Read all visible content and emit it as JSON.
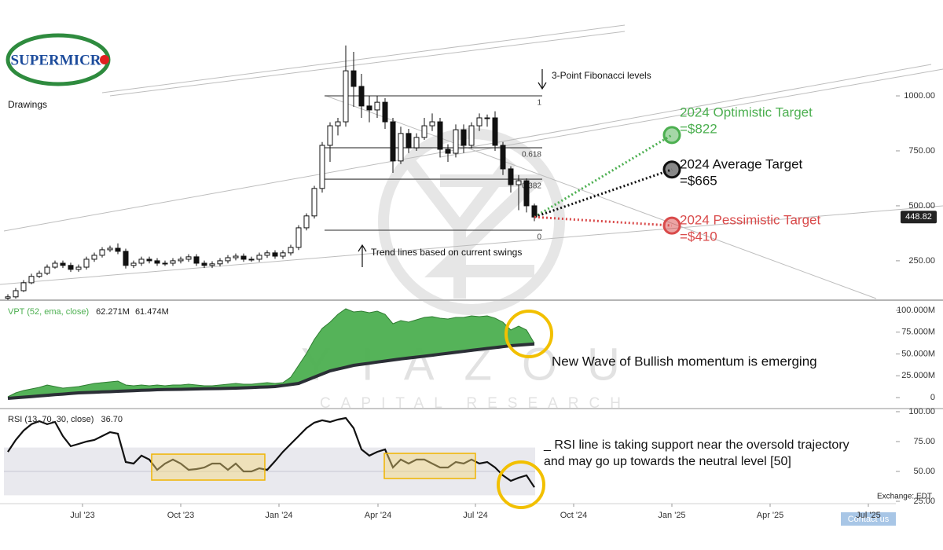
{
  "logo": "SUPERMICR",
  "watermark": {
    "name": "YIAZOU",
    "tagline": "CAPITAL RESEARCH"
  },
  "exchange": "Exchange: EDT",
  "contact": "Contact us",
  "chart_data": [
    {
      "type": "candlestick",
      "x": [
        0,
        1,
        2,
        3,
        4,
        5,
        6,
        7,
        8,
        9,
        10,
        11,
        12,
        13,
        14,
        15,
        16,
        17,
        18,
        19,
        20,
        21,
        22,
        23,
        24,
        25,
        26,
        27,
        28,
        29,
        30,
        31,
        32,
        33,
        34,
        35,
        36,
        37,
        38,
        39,
        40,
        41,
        42,
        43,
        44,
        45,
        46,
        47,
        48,
        49,
        50,
        51,
        52,
        53,
        54,
        55,
        56,
        57,
        58,
        59,
        60,
        61,
        62,
        63,
        64,
        65,
        66,
        67
      ],
      "open": [
        80,
        86,
        114,
        150,
        179,
        193,
        221,
        239,
        229,
        211,
        221,
        257,
        275,
        300,
        307,
        293,
        229,
        239,
        257,
        250,
        239,
        239,
        250,
        257,
        268,
        239,
        229,
        236,
        250,
        264,
        271,
        257,
        257,
        275,
        286,
        271,
        286,
        311,
        400,
        454,
        579,
        775,
        864,
        882,
        1114,
        1043,
        954,
        936,
        971,
        882,
        704,
        829,
        764,
        811,
        864,
        882,
        757,
        739,
        846,
        775,
        864,
        900,
        900,
        775,
        668,
        596,
        614,
        500
      ],
      "high": [
        98,
        126,
        162,
        191,
        205,
        233,
        251,
        251,
        241,
        233,
        269,
        287,
        312,
        319,
        329,
        305,
        251,
        269,
        269,
        262,
        251,
        262,
        269,
        280,
        280,
        251,
        248,
        262,
        276,
        283,
        283,
        269,
        287,
        298,
        298,
        298,
        323,
        412,
        466,
        591,
        790,
        880,
        900,
        1229,
        1200,
        1100,
        1000,
        1000,
        990,
        900,
        860,
        850,
        830,
        900,
        920,
        900,
        780,
        870,
        870,
        880,
        920,
        915,
        930,
        790,
        680,
        640,
        625,
        510
      ],
      "low": [
        72,
        78,
        108,
        144,
        172,
        185,
        214,
        217,
        199,
        200,
        210,
        245,
        265,
        290,
        280,
        215,
        217,
        227,
        238,
        227,
        227,
        227,
        238,
        245,
        227,
        217,
        217,
        224,
        238,
        252,
        245,
        245,
        245,
        263,
        259,
        259,
        274,
        299,
        388,
        442,
        560,
        700,
        820,
        860,
        950,
        900,
        880,
        900,
        850,
        650,
        690,
        740,
        750,
        800,
        840,
        720,
        700,
        720,
        740,
        760,
        840,
        860,
        750,
        640,
        560,
        480,
        470,
        430
      ],
      "close": [
        86,
        114,
        150,
        179,
        193,
        221,
        239,
        229,
        211,
        221,
        257,
        275,
        300,
        307,
        293,
        229,
        239,
        257,
        250,
        239,
        239,
        250,
        257,
        268,
        239,
        229,
        236,
        250,
        264,
        271,
        257,
        257,
        275,
        286,
        271,
        286,
        311,
        400,
        454,
        579,
        775,
        864,
        882,
        1114,
        1043,
        954,
        936,
        971,
        882,
        704,
        829,
        764,
        811,
        864,
        882,
        757,
        739,
        846,
        775,
        864,
        900,
        900,
        775,
        668,
        596,
        614,
        500,
        449
      ],
      "up_color": "#ffffff",
      "down_color": "#111111",
      "xlim": [
        -1,
        113
      ],
      "ylim": [
        71,
        1436
      ],
      "yticks": [
        {
          "value": 1000,
          "label": "1000.00"
        },
        {
          "value": 750,
          "label": "750.00"
        },
        {
          "value": 500,
          "label": "500.00"
        },
        {
          "value": 250,
          "label": "250.00"
        }
      ],
      "last_price": 448.82,
      "fib_levels": [
        {
          "value": 1000,
          "label": "1"
        },
        {
          "value": 764,
          "label": "0.618"
        },
        {
          "value": 621,
          "label": "0.382"
        },
        {
          "value": 389,
          "label": "0"
        }
      ],
      "targets": {
        "labels": [
          "2024 Optimistic Target",
          "2024 Average Target",
          "2024 Pessimistic Target"
        ],
        "value_labels": [
          "=$822",
          "=$665",
          "=$410"
        ],
        "values": [
          822,
          665,
          410
        ],
        "x": 84.5,
        "colors": [
          "#4caf50",
          "#111111",
          "#d94a4a"
        ]
      },
      "annotations": [
        "Drawings",
        "3-Point Fibonacci levels",
        "Trend lines based on current swings"
      ]
    },
    {
      "type": "area",
      "title": "VPT (52, ema, close)",
      "readout": [
        "62.271M",
        "61.474M"
      ],
      "x": [
        0,
        1,
        2,
        3,
        4,
        5,
        6,
        7,
        8,
        9,
        10,
        11,
        12,
        13,
        14,
        15,
        16,
        17,
        18,
        19,
        20,
        21,
        22,
        23,
        24,
        25,
        26,
        27,
        28,
        29,
        30,
        31,
        32,
        33,
        34,
        35,
        36,
        37,
        38,
        39,
        40,
        41,
        42,
        43,
        44,
        45,
        46,
        47,
        48,
        49,
        50,
        51,
        52,
        53,
        54,
        55,
        56,
        57,
        58,
        59,
        60,
        61,
        62,
        63,
        64,
        65,
        66,
        67
      ],
      "series": [
        {
          "name": "VPT",
          "color": "#4caf50",
          "values": [
            0.9,
            5.4,
            8.1,
            9.9,
            11.7,
            14.4,
            12.6,
            10.8,
            11.7,
            12.6,
            14.4,
            16.2,
            17.1,
            18.0,
            18.9,
            14.4,
            13.5,
            14.4,
            13.5,
            14.4,
            13.5,
            14.4,
            14.4,
            15.3,
            14.4,
            13.5,
            13.5,
            14.4,
            15.3,
            16.2,
            15.3,
            15.3,
            16.2,
            17.1,
            16.2,
            17.1,
            23.4,
            36.9,
            50.5,
            66.7,
            79.3,
            86.5,
            95.5,
            101.8,
            98.2,
            99.1,
            97.3,
            99.1,
            95.5,
            84.7,
            88.3,
            86.5,
            89.2,
            91.9,
            92.8,
            91.0,
            90.1,
            91.9,
            91.9,
            93.7,
            92.8,
            93.7,
            91.0,
            86.5,
            77.5,
            82.0,
            77.5,
            62.271
          ]
        },
        {
          "name": "Signal",
          "color": "#2b2f36",
          "values": [
            -0.9,
            -0.2,
            0.5,
            1.2,
            1.9,
            2.6,
            3.3,
            4.0,
            4.7,
            5.4,
            5.8,
            6.1,
            6.5,
            6.8,
            7.2,
            7.6,
            7.9,
            8.3,
            8.6,
            9.0,
            9.2,
            9.4,
            9.5,
            9.7,
            9.9,
            10.1,
            10.3,
            10.4,
            10.6,
            10.8,
            11.2,
            11.5,
            11.9,
            12.2,
            12.6,
            13.8,
            15.0,
            16.2,
            19.8,
            23.4,
            27.0,
            30.6,
            32.7,
            34.8,
            36.9,
            38.2,
            39.4,
            40.7,
            41.9,
            43.2,
            44.3,
            45.4,
            46.4,
            47.5,
            48.6,
            49.7,
            50.8,
            51.9,
            53.0,
            54.1,
            55.2,
            56.3,
            57.3,
            58.4,
            59.5,
            60.2,
            60.8,
            61.474
          ]
        }
      ],
      "xlim": [
        -1,
        113
      ],
      "ylim": [
        -12.6,
        110.8
      ],
      "yticks": [
        {
          "value": 100,
          "label": "100.000M"
        },
        {
          "value": 75,
          "label": "75.000M"
        },
        {
          "value": 50,
          "label": "50.000M"
        },
        {
          "value": 25,
          "label": "25.000M"
        },
        0
      ],
      "annotations": [
        "New Wave of Bullish momentum is emerging"
      ]
    },
    {
      "type": "line",
      "title": "RSI (13, 70, 30, close)",
      "readout": [
        "36.70"
      ],
      "x": [
        0,
        1,
        2,
        3,
        4,
        5,
        6,
        7,
        8,
        9,
        10,
        11,
        12,
        13,
        14,
        15,
        16,
        17,
        18,
        19,
        20,
        21,
        22,
        23,
        24,
        25,
        26,
        27,
        28,
        29,
        30,
        31,
        32,
        33,
        34,
        35,
        36,
        37,
        38,
        39,
        40,
        41,
        42,
        43,
        44,
        45,
        46,
        47,
        48,
        49,
        50,
        51,
        52,
        53,
        54,
        55,
        56,
        57,
        58,
        59,
        60,
        61,
        62,
        63,
        64,
        65,
        66,
        67
      ],
      "series": [
        {
          "name": "RSI",
          "color": "#111111",
          "values": [
            66.4,
            76.3,
            84.2,
            89.5,
            92.1,
            89.5,
            91.4,
            79.6,
            71.1,
            73.0,
            75.0,
            76.3,
            79.6,
            82.9,
            81.6,
            57.9,
            56.6,
            63.2,
            59.9,
            51.3,
            56.6,
            59.9,
            56.6,
            51.3,
            52.0,
            53.3,
            56.6,
            56.6,
            51.3,
            56.6,
            50.0,
            50.0,
            52.6,
            51.3,
            58.6,
            66.4,
            73.0,
            79.6,
            86.2,
            90.8,
            92.8,
            91.4,
            93.4,
            94.7,
            86.2,
            68.4,
            63.2,
            66.4,
            68.4,
            53.3,
            59.9,
            56.6,
            59.9,
            59.9,
            56.6,
            53.3,
            53.3,
            57.9,
            56.6,
            59.9,
            56.6,
            57.9,
            53.3,
            46.7,
            42.1,
            44.7,
            46.7,
            36.7
          ]
        }
      ],
      "band": [
        30,
        70
      ],
      "midline": 50,
      "xlim": [
        -1,
        113
      ],
      "ylim": [
        23.7,
        102.6
      ],
      "yticks": [
        {
          "value": 100,
          "label": "100.00"
        },
        {
          "value": 75,
          "label": "75.00"
        },
        {
          "value": 50,
          "label": "50.00"
        },
        {
          "value": 25,
          "label": "25.00"
        }
      ],
      "xticks": [
        {
          "value": 9.5,
          "label": "Jul '23"
        },
        {
          "value": 22,
          "label": "Oct '23"
        },
        {
          "value": 34.5,
          "label": "Jan '24"
        },
        {
          "value": 47.1,
          "label": "Apr '24"
        },
        {
          "value": 59.5,
          "label": "Jul '24"
        },
        {
          "value": 72,
          "label": "Oct '24"
        },
        {
          "value": 84.5,
          "label": "Jan '25"
        },
        {
          "value": 97,
          "label": "Apr '25"
        },
        {
          "value": 109.5,
          "label": "Jul '25"
        }
      ],
      "annotations": [
        "_ RSI line is taking support near the oversold trajectory",
        "and may go up towards the neutral level [50]"
      ]
    }
  ]
}
